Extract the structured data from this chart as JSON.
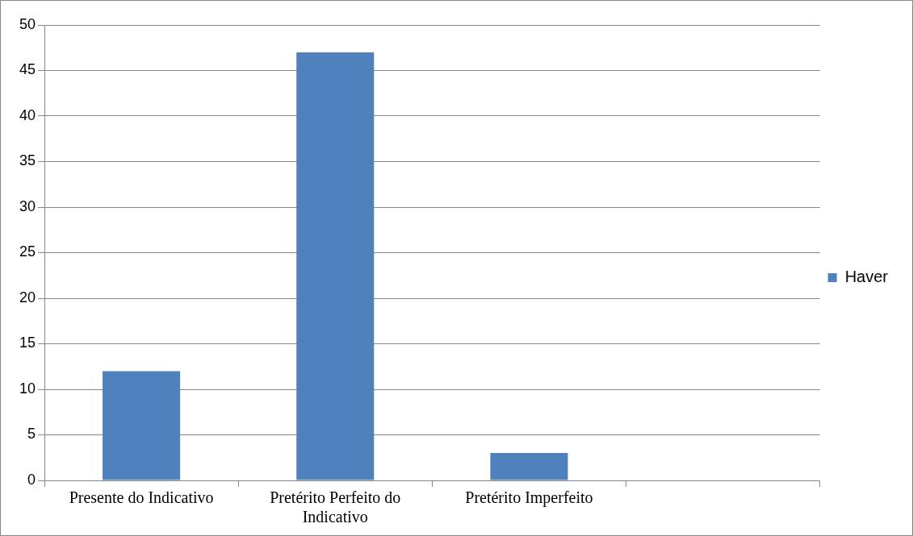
{
  "chart_data": {
    "type": "bar",
    "categories": [
      "Presente do Indicativo",
      "Pretérito Perfeito do Indicativo",
      "Pretérito Imperfeito",
      null
    ],
    "series": [
      {
        "name": "Haver",
        "color": "#4f81bd",
        "values": [
          12,
          47,
          3,
          null
        ]
      }
    ],
    "ylim": [
      0,
      50
    ],
    "yticks": [
      0,
      5,
      10,
      15,
      20,
      25,
      30,
      35,
      40,
      45,
      50
    ],
    "grid": "y",
    "legend": "right"
  }
}
